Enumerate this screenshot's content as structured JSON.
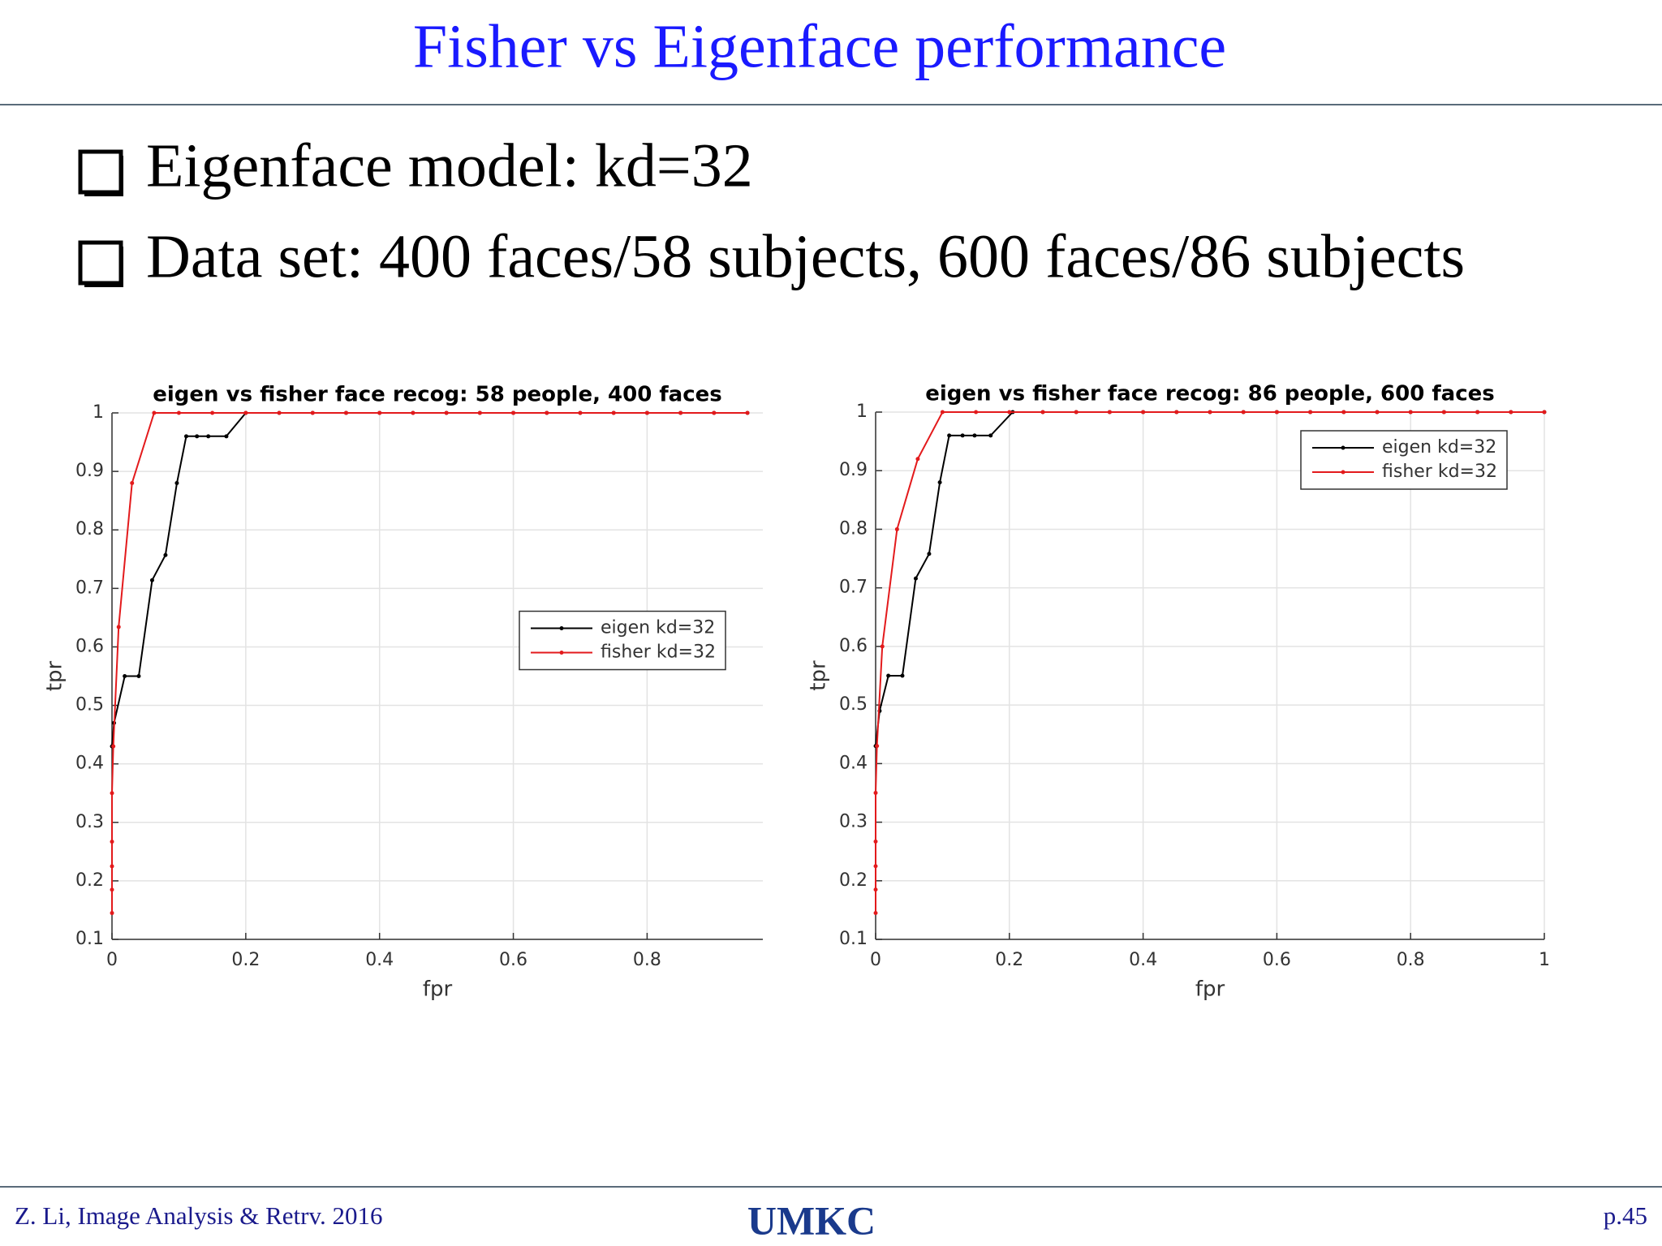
{
  "header": {
    "title": "Fisher vs Eigenface performance"
  },
  "bullets": [
    "Eigenface model: kd=32",
    "Data set: 400 faces/58 subjects, 600 faces/86 subjects"
  ],
  "footer": {
    "left": "Z. Li, Image Analysis & Retrv. 2016",
    "logo": "UMKC",
    "page": "p.45"
  },
  "chart_data": [
    {
      "type": "line",
      "title": "eigen vs fisher face recog: 58 people, 400 faces",
      "x_label": "fpr",
      "y_label": "tpr",
      "xlim": [
        0,
        0.973
      ],
      "xticks": [
        0,
        0.2,
        0.4,
        0.6,
        0.8
      ],
      "ylim": [
        0.1,
        1
      ],
      "yticks": [
        0.1,
        0.2,
        0.3,
        0.4,
        0.5,
        0.6,
        0.7,
        0.8,
        0.9,
        1
      ],
      "grid": true,
      "legend": "east",
      "series": [
        {
          "name": "eigen kd=32",
          "color": "#000000",
          "x": [
            0,
            0.003,
            0.019,
            0.04,
            0.06,
            0.08,
            0.097,
            0.111,
            0.127,
            0.144,
            0.171,
            0.2,
            0.25,
            0.3,
            0.35,
            0.4,
            0.45,
            0.5,
            0.55,
            0.6,
            0.65,
            0.7,
            0.75,
            0.8,
            0.85,
            0.9,
            0.95
          ],
          "values": [
            0.43,
            0.47,
            0.55,
            0.55,
            0.714,
            0.757,
            0.88,
            0.96,
            0.96,
            0.96,
            0.96,
            1,
            1,
            1,
            1,
            1,
            1,
            1,
            1,
            1,
            1,
            1,
            1,
            1,
            1,
            1,
            1
          ]
        },
        {
          "name": "fisher kd=32",
          "color": "#e31a1c",
          "x": [
            0,
            0,
            0,
            0,
            0,
            0.002,
            0.01,
            0.03,
            0.063,
            0.1,
            0.15,
            0.2,
            0.25,
            0.3,
            0.35,
            0.4,
            0.45,
            0.5,
            0.55,
            0.6,
            0.65,
            0.7,
            0.75,
            0.8,
            0.85,
            0.9,
            0.95
          ],
          "values": [
            0.145,
            0.185,
            0.225,
            0.267,
            0.35,
            0.43,
            0.634,
            0.88,
            1,
            1,
            1,
            1,
            1,
            1,
            1,
            1,
            1,
            1,
            1,
            1,
            1,
            1,
            1,
            1,
            1,
            1,
            1
          ]
        }
      ]
    },
    {
      "type": "line",
      "title": "eigen vs fisher face recog: 86 people, 600 faces",
      "x_label": "fpr",
      "y_label": "tpr",
      "xlim": [
        0,
        1
      ],
      "xticks": [
        0,
        0.2,
        0.4,
        0.6,
        0.8,
        1
      ],
      "ylim": [
        0.1,
        1
      ],
      "yticks": [
        0.1,
        0.2,
        0.3,
        0.4,
        0.5,
        0.6,
        0.7,
        0.8,
        0.9,
        1
      ],
      "grid": true,
      "legend": "northeast",
      "series": [
        {
          "name": "eigen kd=32",
          "color": "#000000",
          "x": [
            0,
            0.006,
            0.019,
            0.04,
            0.06,
            0.08,
            0.096,
            0.11,
            0.13,
            0.148,
            0.172,
            0.205,
            0.25,
            0.3,
            0.35,
            0.4,
            0.45,
            0.5,
            0.55,
            0.6,
            0.65,
            0.7,
            0.75,
            0.8,
            0.85,
            0.9,
            0.95,
            1
          ],
          "values": [
            0.43,
            0.49,
            0.55,
            0.55,
            0.716,
            0.758,
            0.88,
            0.96,
            0.96,
            0.96,
            0.96,
            1,
            1,
            1,
            1,
            1,
            1,
            1,
            1,
            1,
            1,
            1,
            1,
            1,
            1,
            1,
            1,
            1
          ]
        },
        {
          "name": "fisher kd=32",
          "color": "#e31a1c",
          "x": [
            0,
            0,
            0,
            0,
            0,
            0.002,
            0.01,
            0.032,
            0.063,
            0.1,
            0.15,
            0.2,
            0.25,
            0.3,
            0.35,
            0.4,
            0.45,
            0.5,
            0.55,
            0.6,
            0.65,
            0.7,
            0.75,
            0.8,
            0.85,
            0.9,
            0.95,
            1
          ],
          "values": [
            0.145,
            0.185,
            0.225,
            0.267,
            0.35,
            0.43,
            0.6,
            0.8,
            0.92,
            1,
            1,
            1,
            1,
            1,
            1,
            1,
            1,
            1,
            1,
            1,
            1,
            1,
            1,
            1,
            1,
            1,
            1,
            1
          ]
        }
      ]
    }
  ]
}
